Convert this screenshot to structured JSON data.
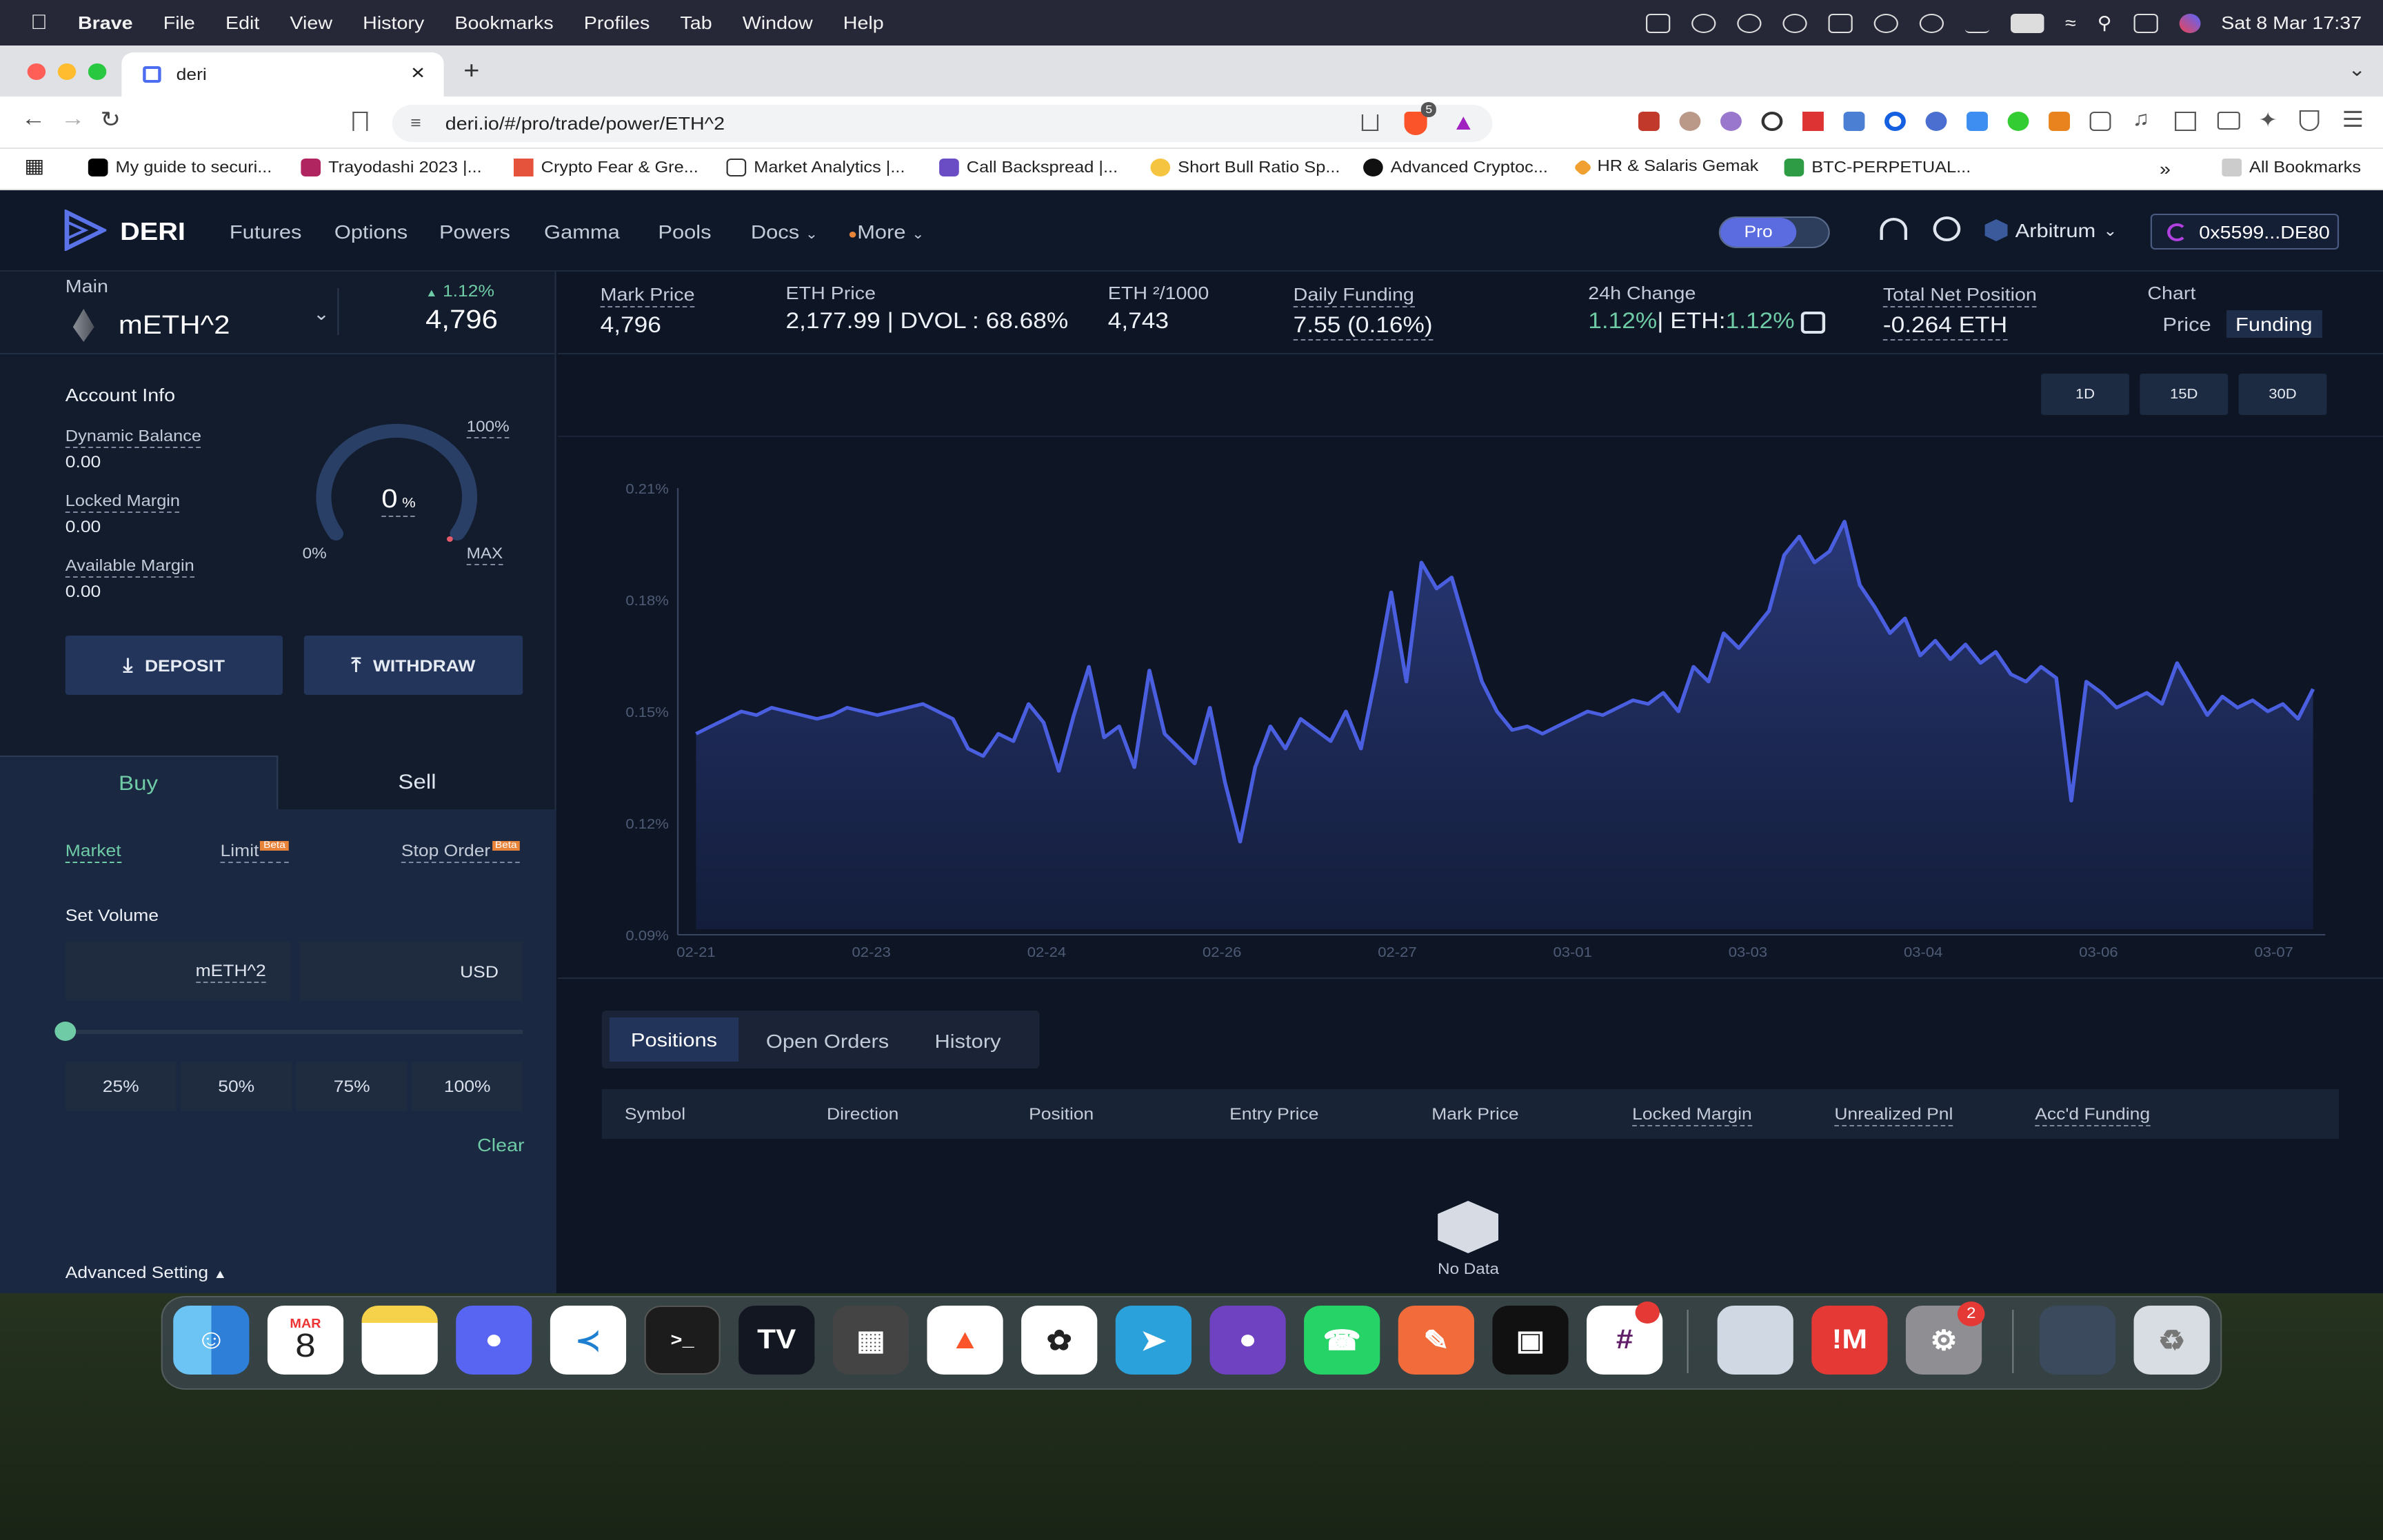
{
  "os": {
    "app_name": "Brave",
    "menus": [
      "File",
      "Edit",
      "View",
      "History",
      "Bookmarks",
      "Profiles",
      "Tab",
      "Window",
      "Help"
    ],
    "datetime": "Sat 8 Mar  17:37"
  },
  "browser": {
    "tab_title": "deri",
    "url": "deri.io/#/pro/trade/power/ETH^2",
    "shield_badge": "5",
    "bookmarks": [
      "My guide to securi...",
      "Trayodashi 2023 |...",
      "Crypto Fear & Gre...",
      "Market Analytics |...",
      "Call Backspread |...",
      "Short Bull Ratio Sp...",
      "Advanced Cryptoc...",
      "HR & Salaris Gemak",
      "BTC-PERPETUAL..."
    ],
    "all_bookmarks": "All Bookmarks"
  },
  "nav": {
    "brand": "DERI",
    "links": [
      "Futures",
      "Options",
      "Powers",
      "Gamma",
      "Pools",
      "Docs",
      "More"
    ],
    "pro_label": "Pro",
    "network": "Arbitrum",
    "wallet": "0x5599...DE80"
  },
  "instrument": {
    "group": "Main",
    "symbol": "mETH^2",
    "change": "1.12%",
    "price": "4,796"
  },
  "stats": {
    "mark_price_label": "Mark Price",
    "mark_price": "4,796",
    "eth_price_label": "ETH Price",
    "eth_price": "2,177.99 | DVOL : 68.68%",
    "eth2_label": "ETH ²/1000",
    "eth2": "4,743",
    "funding_label": "Daily Funding",
    "funding": "7.55  (0.16%)",
    "change_label": "24h Change",
    "change": "1.12%",
    "change_eth_prefix": "| ETH:",
    "change_eth": "1.12%",
    "net_label": "Total Net Position",
    "net": "-0.264 ETH",
    "chart_label": "Chart",
    "chart_price": "Price",
    "chart_funding": "Funding"
  },
  "account": {
    "title": "Account Info",
    "dynamic_balance_label": "Dynamic Balance",
    "dynamic_balance": "0.00",
    "locked_margin_label": "Locked Margin",
    "locked_margin": "0.00",
    "available_margin_label": "Available Margin",
    "available_margin": "0.00",
    "gauge_value": "0",
    "gauge_unit": "%",
    "gauge_min": "0%",
    "gauge_max_pct": "100%",
    "gauge_max": "MAX",
    "deposit": "DEPOSIT",
    "withdraw": "WITHDRAW"
  },
  "order": {
    "buy": "Buy",
    "sell": "Sell",
    "market": "Market",
    "limit": "Limit",
    "stop": "Stop Order",
    "beta": "Beta",
    "set_volume": "Set Volume",
    "unit1": "mETH^2",
    "unit2": "USD",
    "p25": "25%",
    "p50": "50%",
    "p75": "75%",
    "p100": "100%",
    "clear": "Clear",
    "advanced": "Advanced Setting"
  },
  "ranges": [
    "1D",
    "15D",
    "30D"
  ],
  "chart_data": {
    "type": "area",
    "x_ticks": [
      "02-21",
      "02-23",
      "02-24",
      "02-26",
      "02-27",
      "03-01",
      "03-03",
      "03-04",
      "03-06",
      "03-07"
    ],
    "y_ticks": [
      "0.21%",
      "0.18%",
      "0.15%",
      "0.12%",
      "0.09%"
    ],
    "ylim": [
      0.09,
      0.21
    ],
    "series": [
      {
        "values": [
          0.144,
          0.146,
          0.148,
          0.15,
          0.149,
          0.151,
          0.15,
          0.149,
          0.148,
          0.149,
          0.151,
          0.15,
          0.149,
          0.15,
          0.151,
          0.152,
          0.15,
          0.148,
          0.14,
          0.138,
          0.144,
          0.142,
          0.152,
          0.147,
          0.134,
          0.149,
          0.162,
          0.143,
          0.146,
          0.135,
          0.161,
          0.144,
          0.14,
          0.136,
          0.151,
          0.131,
          0.115,
          0.135,
          0.146,
          0.14,
          0.148,
          0.145,
          0.142,
          0.15,
          0.14,
          0.16,
          0.182,
          0.158,
          0.19,
          0.183,
          0.186,
          0.172,
          0.158,
          0.15,
          0.145,
          0.146,
          0.144,
          0.146,
          0.148,
          0.15,
          0.149,
          0.151,
          0.153,
          0.152,
          0.155,
          0.15,
          0.162,
          0.158,
          0.171,
          0.167,
          0.172,
          0.177,
          0.192,
          0.197,
          0.19,
          0.193,
          0.201,
          0.184,
          0.178,
          0.171,
          0.175,
          0.165,
          0.169,
          0.164,
          0.168,
          0.163,
          0.166,
          0.16,
          0.158,
          0.162,
          0.159,
          0.126,
          0.158,
          0.155,
          0.151,
          0.153,
          0.155,
          0.152,
          0.163,
          0.156,
          0.149,
          0.154,
          0.151,
          0.153,
          0.15,
          0.152,
          0.148,
          0.156
        ]
      }
    ]
  },
  "positions": {
    "tabs": [
      "Positions",
      "Open Orders",
      "History"
    ],
    "columns": [
      "Symbol",
      "Direction",
      "Position",
      "Entry Price",
      "Mark Price",
      "Locked Margin",
      "Unrealized Pnl",
      "Acc'd Funding"
    ],
    "empty": "No Data"
  },
  "dock": {
    "calendar_month": "MAR",
    "calendar_day": "8",
    "badge_chatgpt": "",
    "badge_settings": "2"
  }
}
